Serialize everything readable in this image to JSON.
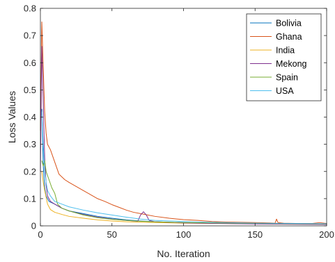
{
  "chart_data": {
    "type": "line",
    "title": "",
    "xlabel": "No. Iteration",
    "ylabel": "Loss Values",
    "xlim": [
      0,
      200
    ],
    "ylim": [
      0,
      0.8
    ],
    "xticks": [
      0,
      50,
      100,
      150,
      200
    ],
    "xtick_labels": [
      "0",
      "50",
      "100",
      "150",
      "200"
    ],
    "yticks": [
      0,
      0.1,
      0.2,
      0.3,
      0.4,
      0.5,
      0.6,
      0.7,
      0.8
    ],
    "ytick_labels": [
      "0",
      "0.1",
      "0.2",
      "0.3",
      "0.4",
      "0.5",
      "0.6",
      "0.7",
      "0.8"
    ],
    "grid": false,
    "legend_position": "top-right",
    "series": [
      {
        "name": "Bolivia",
        "color": "#0072BD",
        "points": [
          [
            1,
            0.43
          ],
          [
            2,
            0.22
          ],
          [
            3,
            0.14
          ],
          [
            4,
            0.11
          ],
          [
            6,
            0.09
          ],
          [
            10,
            0.08
          ],
          [
            15,
            0.065
          ],
          [
            20,
            0.055
          ],
          [
            30,
            0.045
          ],
          [
            40,
            0.035
          ],
          [
            50,
            0.028
          ],
          [
            60,
            0.022
          ],
          [
            70,
            0.018
          ],
          [
            80,
            0.015
          ],
          [
            100,
            0.012
          ],
          [
            120,
            0.01
          ],
          [
            150,
            0.008
          ],
          [
            200,
            0.006
          ]
        ]
      },
      {
        "name": "Ghana",
        "color": "#D95319",
        "points": [
          [
            0,
            0.35
          ],
          [
            1,
            0.75
          ],
          [
            2,
            0.58
          ],
          [
            3,
            0.42
          ],
          [
            4,
            0.34
          ],
          [
            5,
            0.3
          ],
          [
            7,
            0.28
          ],
          [
            9,
            0.25
          ],
          [
            11,
            0.22
          ],
          [
            13,
            0.19
          ],
          [
            17,
            0.17
          ],
          [
            20,
            0.16
          ],
          [
            25,
            0.145
          ],
          [
            30,
            0.13
          ],
          [
            35,
            0.115
          ],
          [
            40,
            0.1
          ],
          [
            45,
            0.09
          ],
          [
            50,
            0.078
          ],
          [
            55,
            0.068
          ],
          [
            60,
            0.058
          ],
          [
            65,
            0.05
          ],
          [
            70,
            0.045
          ],
          [
            75,
            0.04
          ],
          [
            80,
            0.035
          ],
          [
            90,
            0.028
          ],
          [
            100,
            0.023
          ],
          [
            110,
            0.02
          ],
          [
            120,
            0.016
          ],
          [
            130,
            0.014
          ],
          [
            140,
            0.013
          ],
          [
            150,
            0.012
          ],
          [
            160,
            0.011
          ],
          [
            164,
            0.01
          ],
          [
            165,
            0.025
          ],
          [
            166,
            0.012
          ],
          [
            170,
            0.01
          ],
          [
            180,
            0.009
          ],
          [
            190,
            0.009
          ],
          [
            195,
            0.012
          ],
          [
            200,
            0.009
          ]
        ]
      },
      {
        "name": "India",
        "color": "#EDB120",
        "points": [
          [
            1,
            0.2
          ],
          [
            2,
            0.16
          ],
          [
            3,
            0.13
          ],
          [
            5,
            0.08
          ],
          [
            7,
            0.06
          ],
          [
            10,
            0.05
          ],
          [
            15,
            0.042
          ],
          [
            20,
            0.035
          ],
          [
            30,
            0.028
          ],
          [
            40,
            0.022
          ],
          [
            50,
            0.018
          ],
          [
            60,
            0.015
          ],
          [
            80,
            0.012
          ],
          [
            100,
            0.01
          ],
          [
            150,
            0.008
          ],
          [
            200,
            0.006
          ]
        ]
      },
      {
        "name": "Mekong",
        "color": "#7E2F8E",
        "points": [
          [
            0,
            0.2
          ],
          [
            1,
            0.66
          ],
          [
            2,
            0.45
          ],
          [
            3,
            0.25
          ],
          [
            4,
            0.15
          ],
          [
            5,
            0.11
          ],
          [
            7,
            0.09
          ],
          [
            10,
            0.08
          ],
          [
            15,
            0.065
          ],
          [
            20,
            0.055
          ],
          [
            30,
            0.042
          ],
          [
            40,
            0.032
          ],
          [
            50,
            0.025
          ],
          [
            60,
            0.02
          ],
          [
            68,
            0.017
          ],
          [
            70,
            0.04
          ],
          [
            72,
            0.052
          ],
          [
            74,
            0.04
          ],
          [
            76,
            0.02
          ],
          [
            80,
            0.015
          ],
          [
            100,
            0.011
          ],
          [
            120,
            0.009
          ],
          [
            150,
            0.007
          ],
          [
            200,
            0.005
          ]
        ]
      },
      {
        "name": "Spain",
        "color": "#77AC30",
        "points": [
          [
            1,
            0.24
          ],
          [
            2,
            0.22
          ],
          [
            3,
            0.24
          ],
          [
            4,
            0.2
          ],
          [
            6,
            0.17
          ],
          [
            8,
            0.14
          ],
          [
            10,
            0.12
          ],
          [
            12,
            0.08
          ],
          [
            15,
            0.065
          ],
          [
            20,
            0.055
          ],
          [
            30,
            0.04
          ],
          [
            40,
            0.03
          ],
          [
            50,
            0.024
          ],
          [
            60,
            0.02
          ],
          [
            70,
            0.017
          ],
          [
            80,
            0.015
          ],
          [
            100,
            0.012
          ],
          [
            150,
            0.009
          ],
          [
            200,
            0.007
          ]
        ]
      },
      {
        "name": "USA",
        "color": "#4DBEEE",
        "points": [
          [
            1,
            0.42
          ],
          [
            2,
            0.3
          ],
          [
            3,
            0.2
          ],
          [
            4,
            0.16
          ],
          [
            5,
            0.13
          ],
          [
            7,
            0.11
          ],
          [
            10,
            0.09
          ],
          [
            15,
            0.08
          ],
          [
            20,
            0.07
          ],
          [
            30,
            0.058
          ],
          [
            40,
            0.048
          ],
          [
            50,
            0.04
          ],
          [
            60,
            0.032
          ],
          [
            70,
            0.025
          ],
          [
            80,
            0.02
          ],
          [
            100,
            0.016
          ],
          [
            120,
            0.013
          ],
          [
            150,
            0.01
          ],
          [
            200,
            0.008
          ]
        ]
      }
    ]
  }
}
